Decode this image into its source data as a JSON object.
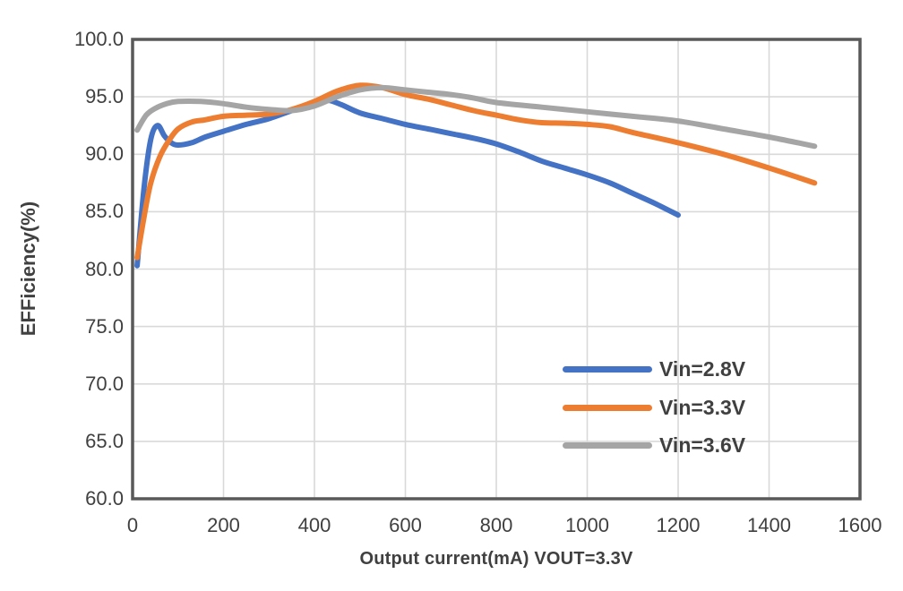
{
  "chart_data": {
    "type": "line",
    "title": "",
    "xlabel": "Output current(mA)  VOUT=3.3V",
    "ylabel": "EFFiciency(%)",
    "xlim": [
      0,
      1600
    ],
    "ylim": [
      60,
      100
    ],
    "grid": true,
    "legend_position": "inside-right-middle",
    "colors": {
      "axis_border": "#595959",
      "gridline": "#d9d9d9",
      "text": "#404040",
      "background": "#ffffff"
    },
    "x_ticks": [
      {
        "v": 0,
        "label": "0"
      },
      {
        "v": 200,
        "label": "200"
      },
      {
        "v": 400,
        "label": "400"
      },
      {
        "v": 600,
        "label": "600"
      },
      {
        "v": 800,
        "label": "800"
      },
      {
        "v": 1000,
        "label": "1000"
      },
      {
        "v": 1200,
        "label": "1200"
      },
      {
        "v": 1400,
        "label": "1400"
      },
      {
        "v": 1600,
        "label": "1600"
      }
    ],
    "y_ticks": [
      {
        "v": 100,
        "label": "100.0"
      },
      {
        "v": 95,
        "label": "95.0"
      },
      {
        "v": 90,
        "label": "90.0"
      },
      {
        "v": 85,
        "label": "85.0"
      },
      {
        "v": 80,
        "label": "80.0"
      },
      {
        "v": 75,
        "label": "75.0"
      },
      {
        "v": 70,
        "label": "70.0"
      },
      {
        "v": 65,
        "label": "65.0"
      },
      {
        "v": 60,
        "label": "60.0"
      }
    ],
    "series": [
      {
        "name": "Vin=2.8V",
        "color": "#4472C4",
        "points": [
          [
            10,
            80.3
          ],
          [
            25,
            87.0
          ],
          [
            40,
            91.3
          ],
          [
            55,
            92.5
          ],
          [
            70,
            91.6
          ],
          [
            85,
            91.0
          ],
          [
            100,
            90.8
          ],
          [
            130,
            91.0
          ],
          [
            160,
            91.5
          ],
          [
            200,
            92.0
          ],
          [
            250,
            92.6
          ],
          [
            300,
            93.1
          ],
          [
            350,
            93.8
          ],
          [
            400,
            94.5
          ],
          [
            430,
            94.7
          ],
          [
            460,
            94.3
          ],
          [
            500,
            93.6
          ],
          [
            550,
            93.1
          ],
          [
            600,
            92.6
          ],
          [
            650,
            92.2
          ],
          [
            700,
            91.8
          ],
          [
            750,
            91.4
          ],
          [
            800,
            90.9
          ],
          [
            850,
            90.2
          ],
          [
            900,
            89.4
          ],
          [
            950,
            88.8
          ],
          [
            1000,
            88.2
          ],
          [
            1050,
            87.5
          ],
          [
            1100,
            86.6
          ],
          [
            1150,
            85.7
          ],
          [
            1200,
            84.7
          ]
        ]
      },
      {
        "name": "Vin=3.3V",
        "color": "#ED7D31",
        "points": [
          [
            10,
            81.0
          ],
          [
            25,
            84.5
          ],
          [
            40,
            87.5
          ],
          [
            60,
            89.8
          ],
          [
            80,
            91.2
          ],
          [
            100,
            92.2
          ],
          [
            130,
            92.8
          ],
          [
            160,
            93.0
          ],
          [
            200,
            93.3
          ],
          [
            250,
            93.4
          ],
          [
            300,
            93.5
          ],
          [
            350,
            93.9
          ],
          [
            400,
            94.6
          ],
          [
            450,
            95.5
          ],
          [
            500,
            96.0
          ],
          [
            550,
            95.8
          ],
          [
            600,
            95.2
          ],
          [
            650,
            94.8
          ],
          [
            700,
            94.3
          ],
          [
            750,
            93.8
          ],
          [
            800,
            93.4
          ],
          [
            850,
            93.0
          ],
          [
            900,
            92.75
          ],
          [
            950,
            92.7
          ],
          [
            1000,
            92.6
          ],
          [
            1050,
            92.4
          ],
          [
            1100,
            91.9
          ],
          [
            1200,
            91.0
          ],
          [
            1300,
            90.0
          ],
          [
            1400,
            88.8
          ],
          [
            1500,
            87.5
          ]
        ]
      },
      {
        "name": "Vin=3.6V",
        "color": "#A5A5A5",
        "points": [
          [
            10,
            92.1
          ],
          [
            30,
            93.4
          ],
          [
            50,
            94.0
          ],
          [
            75,
            94.4
          ],
          [
            100,
            94.6
          ],
          [
            150,
            94.6
          ],
          [
            200,
            94.4
          ],
          [
            250,
            94.1
          ],
          [
            300,
            93.9
          ],
          [
            350,
            93.8
          ],
          [
            400,
            94.2
          ],
          [
            450,
            95.0
          ],
          [
            500,
            95.6
          ],
          [
            550,
            95.8
          ],
          [
            600,
            95.6
          ],
          [
            650,
            95.4
          ],
          [
            700,
            95.2
          ],
          [
            750,
            94.9
          ],
          [
            800,
            94.5
          ],
          [
            900,
            94.1
          ],
          [
            1000,
            93.7
          ],
          [
            1100,
            93.3
          ],
          [
            1200,
            92.9
          ],
          [
            1300,
            92.2
          ],
          [
            1400,
            91.5
          ],
          [
            1500,
            90.7
          ]
        ]
      }
    ],
    "legend_rows_y": [
      412,
      455,
      497
    ]
  }
}
